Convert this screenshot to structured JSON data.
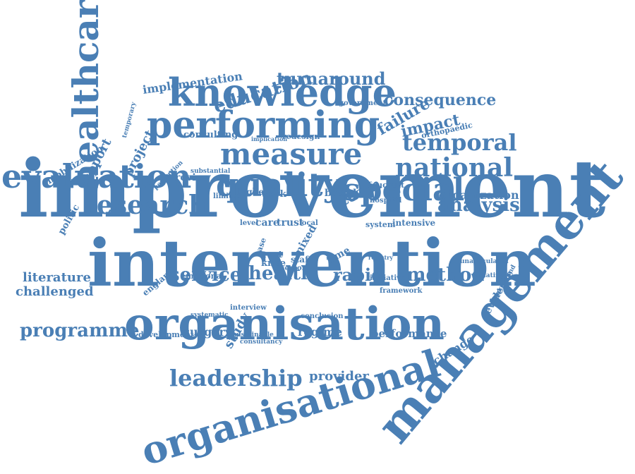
{
  "cloud": {
    "color": "#4a7fb5",
    "words": [
      "improvement",
      "intervention",
      "management",
      "organisation",
      "organisational",
      "knowledge",
      "performing",
      "healthcare",
      "quality",
      "evaluation",
      "measure",
      "special",
      "research",
      "national",
      "temporal",
      "leadership",
      "method",
      "analysis",
      "service",
      "health",
      "rapid",
      "programme",
      "education",
      "turnaround",
      "consequence",
      "literature",
      "challenged",
      "provider",
      "implementation",
      "impact",
      "failure",
      "team",
      "organization",
      "project",
      "support",
      "mobilization",
      "politic",
      "consulting",
      "review",
      "evidence",
      "change",
      "performance",
      "surgery",
      "regime",
      "development",
      "emotional",
      "study",
      "government",
      "redesign",
      "foucault",
      "hospital",
      "intensive",
      "system",
      "based",
      "work",
      "higher",
      "care",
      "trust",
      "level",
      "rset",
      "knee",
      "staff",
      "time",
      "initiative",
      "framework",
      "interview",
      "systematic",
      "conclusion",
      "sustainable",
      "consultancy",
      "england",
      "mixed",
      "case",
      "local",
      "orthopaedic",
      "background",
      "unarticulated",
      "limited",
      "substantial",
      "perception",
      "temporary",
      "implication",
      "senior",
      "registry",
      "evaluating"
    ]
  }
}
